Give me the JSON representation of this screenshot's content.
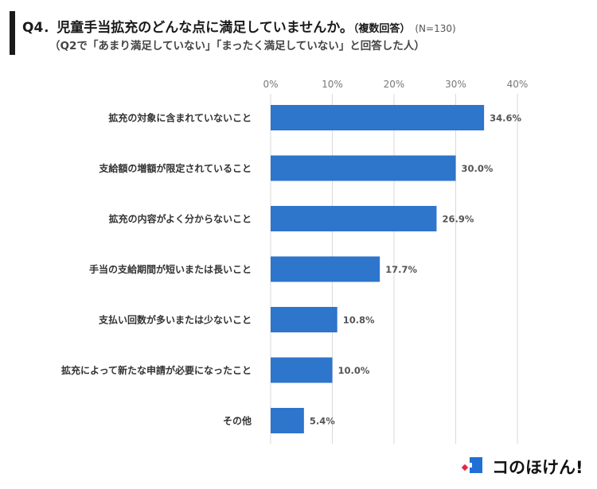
{
  "header": {
    "title": "Q4．児童手当拡充のどんな点に満足していませんか。",
    "title_suffix": "（複数回答）",
    "sample_size": "(N=130)",
    "subtitle": "（Q2で「あまり満足していない」「まったく満足していない」と回答した人）"
  },
  "chart_data": {
    "type": "bar",
    "orientation": "horizontal",
    "categories": [
      "拡充の対象に含まれていないこと",
      "支給額の増額が限定されていること",
      "拡充の内容がよく分からないこと",
      "手当の支給期間が短いまたは長いこと",
      "支払い回数が多いまたは少ないこと",
      "拡充によって新たな申請が必要になったこと",
      "その他"
    ],
    "values": [
      34.6,
      30.0,
      26.9,
      17.7,
      10.8,
      10.0,
      5.4
    ],
    "value_labels": [
      "34.6%",
      "30.0%",
      "26.9%",
      "17.7%",
      "10.8%",
      "10.0%",
      "5.4%"
    ],
    "xlim": [
      0,
      40
    ],
    "ticks": [
      0,
      10,
      20,
      30,
      40
    ],
    "tick_labels": [
      "0%",
      "10%",
      "20%",
      "30%",
      "40%"
    ],
    "grid": true,
    "bar_color": "#2e75cc"
  },
  "brand": {
    "name": "コのほけん!",
    "colors": {
      "blue": "#1f6fd6",
      "red": "#e0284a"
    }
  }
}
